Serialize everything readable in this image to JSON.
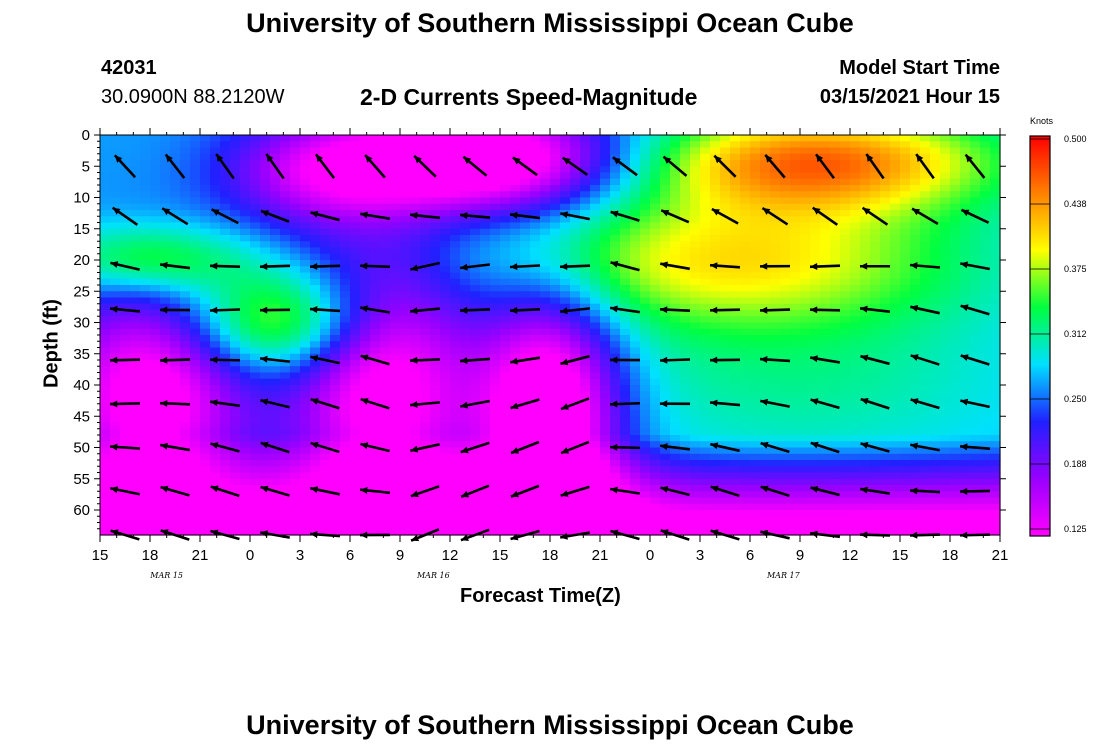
{
  "header": {
    "title_top": "University of Southern Mississippi Ocean Cube",
    "title_bottom": "University of Southern Mississippi Ocean Cube",
    "station_id": "42031",
    "station_coords": "30.0900N 88.2120W",
    "product": "2-D Currents Speed-Magnitude",
    "model_start_label": "Model Start Time",
    "model_start_value": "03/15/2021 Hour 15"
  },
  "colorbar": {
    "unit": "Knots",
    "ticks": [
      "0.500",
      "0.438",
      "0.375",
      "0.312",
      "0.250",
      "0.188",
      "0.125"
    ],
    "colors": [
      "#ff00ff",
      "#9900ff",
      "#2020ff",
      "#00e0ff",
      "#00ff40",
      "#ffff00",
      "#ff8000",
      "#ff0000"
    ]
  },
  "chart_data": {
    "type": "heatmap",
    "xlabel": "Forecast Time(Z)",
    "ylabel": "Depth (ft)",
    "x_tick_labels": [
      "15",
      "18",
      "21",
      "0",
      "3",
      "6",
      "9",
      "12",
      "15",
      "18",
      "21",
      "0",
      "3",
      "6",
      "9",
      "12",
      "15",
      "18",
      "21"
    ],
    "date_labels": [
      "MAR 15",
      "MAR 16",
      "MAR 17"
    ],
    "y_tick_labels": [
      "0",
      "5",
      "10",
      "15",
      "20",
      "25",
      "30",
      "35",
      "40",
      "45",
      "50",
      "55",
      "60"
    ],
    "ylim": [
      0,
      64
    ],
    "value_range": [
      0.125,
      0.5
    ],
    "series_note": "current speed magnitude (knots) vs forecast hour and depth; arrows show current direction"
  }
}
